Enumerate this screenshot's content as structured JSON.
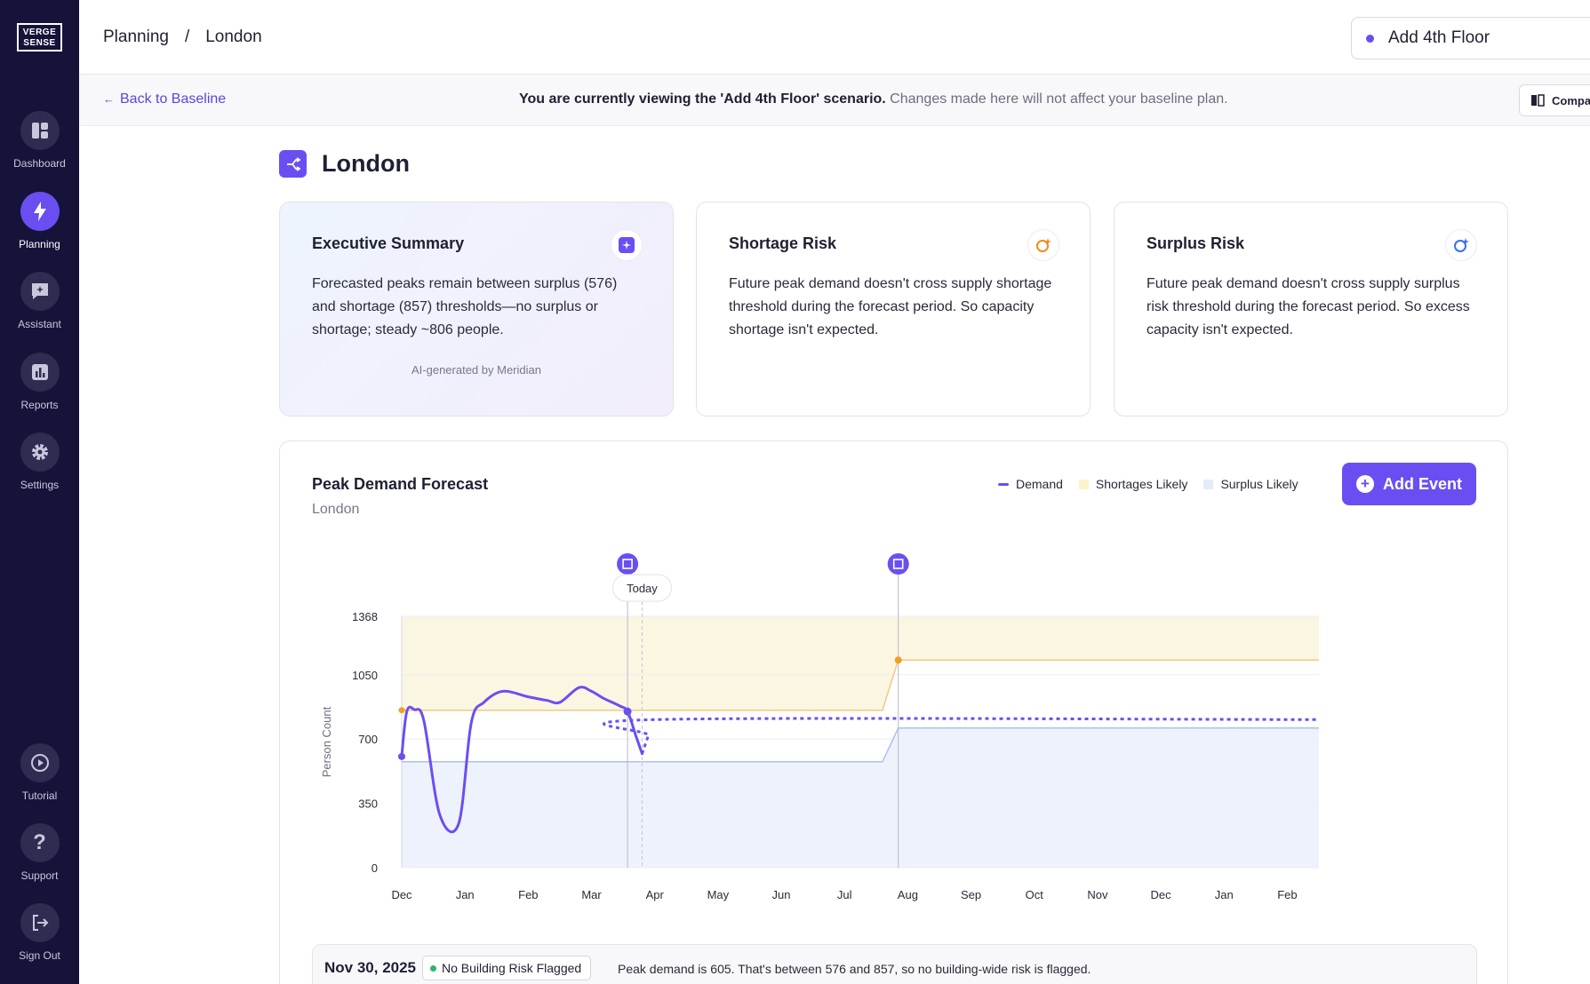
{
  "app": {
    "logo_text_1": "VERGE",
    "logo_text_2": "SENSE"
  },
  "sidebar": {
    "items": [
      {
        "label": "Dashboard",
        "icon": "dashboard-icon"
      },
      {
        "label": "Planning",
        "icon": "bolt-icon",
        "active": true
      },
      {
        "label": "Assistant",
        "icon": "assistant-icon"
      },
      {
        "label": "Reports",
        "icon": "bar-chart-icon"
      },
      {
        "label": "Settings",
        "icon": "gear-icon"
      },
      {
        "label": "Tutorial",
        "icon": "play-icon"
      },
      {
        "label": "Support",
        "icon": "question-icon"
      },
      {
        "label": "Sign Out",
        "icon": "sign-out-icon"
      }
    ]
  },
  "header": {
    "breadcrumb": [
      "Planning",
      "/",
      "London"
    ],
    "scenario": "Add 4th Floor"
  },
  "banner": {
    "back_label": "Back to Baseline",
    "message_bold": "You are currently viewing the 'Add 4th Floor' scenario.",
    "message_rest": " Changes made here will not affect your baseline plan.",
    "compare_label": "Compare"
  },
  "page": {
    "title": "London"
  },
  "cards": {
    "exec": {
      "title": "Executive Summary",
      "body": "Forecasted peaks remain between surplus (576) and shortage (857) thresholds—no surplus or shortage; steady ~806 people.",
      "footer": "AI-generated by Meridian"
    },
    "shortage": {
      "title": "Shortage Risk",
      "body": "Future peak demand doesn't cross supply shortage threshold during the forecast period. So capacity shortage isn't expected."
    },
    "surplus": {
      "title": "Surplus Risk",
      "body": "Future peak demand doesn't cross supply surplus risk threshold during the forecast period. So excess capacity isn't expected."
    }
  },
  "chart_card": {
    "title": "Peak Demand Forecast",
    "subtitle": "London",
    "legend": {
      "demand": "Demand",
      "shortages": "Shortages Likely",
      "surplus": "Surplus Likely"
    },
    "add_event_label": "Add Event",
    "today_label": "Today"
  },
  "colors": {
    "accent": "#6b4ef2",
    "sidebar_bg": "#16133a",
    "shortage_fill": "#fbf6e2",
    "surplus_fill": "#eef2fc",
    "shortage_line": "#f3ca7e",
    "surplus_line": "#a9c2ee"
  },
  "chart_data": {
    "type": "line",
    "ylabel": "Person Count",
    "yticks": [
      0,
      350,
      700,
      1050,
      1368
    ],
    "ylim": [
      0,
      1368
    ],
    "month_labels": [
      "Dec",
      "Jan",
      "Feb",
      "Mar",
      "Apr",
      "May",
      "Jun",
      "Jul",
      "Aug",
      "Sep",
      "Oct",
      "Nov",
      "Dec",
      "Jan",
      "Feb"
    ],
    "x_range_months": [
      0,
      14.5
    ],
    "today_x": 3.8,
    "event_markers": [
      3.57,
      7.85
    ],
    "series": [
      {
        "name": "Demand",
        "style": "solid",
        "x": [
          0,
          0.08,
          0.2,
          0.35,
          0.6,
          0.9,
          1.1,
          1.3,
          1.6,
          2.0,
          2.3,
          2.5,
          2.8,
          3.0,
          3.2,
          3.45,
          3.57,
          3.7,
          3.8
        ],
        "y": [
          605,
          850,
          860,
          800,
          290,
          240,
          790,
          900,
          960,
          930,
          910,
          900,
          980,
          960,
          920,
          880,
          850,
          720,
          620
        ]
      },
      {
        "name": "Demand forecast",
        "style": "dashed",
        "x": [
          3.8,
          3.9,
          4.0,
          14.5
        ],
        "y": [
          620,
          720,
          806,
          806
        ]
      }
    ],
    "shortage_threshold": {
      "x": [
        0,
        7.6,
        7.85,
        14.5
      ],
      "y": [
        857,
        857,
        1130,
        1130
      ]
    },
    "surplus_threshold": {
      "x": [
        0,
        7.6,
        7.85,
        14.5
      ],
      "y": [
        576,
        576,
        760,
        760
      ]
    }
  },
  "status": {
    "date": "Nov 30, 2025",
    "badge": "No Building Risk Flagged",
    "message": "Peak demand is 605. That's between 576 and 857, so no building-wide risk is flagged."
  }
}
